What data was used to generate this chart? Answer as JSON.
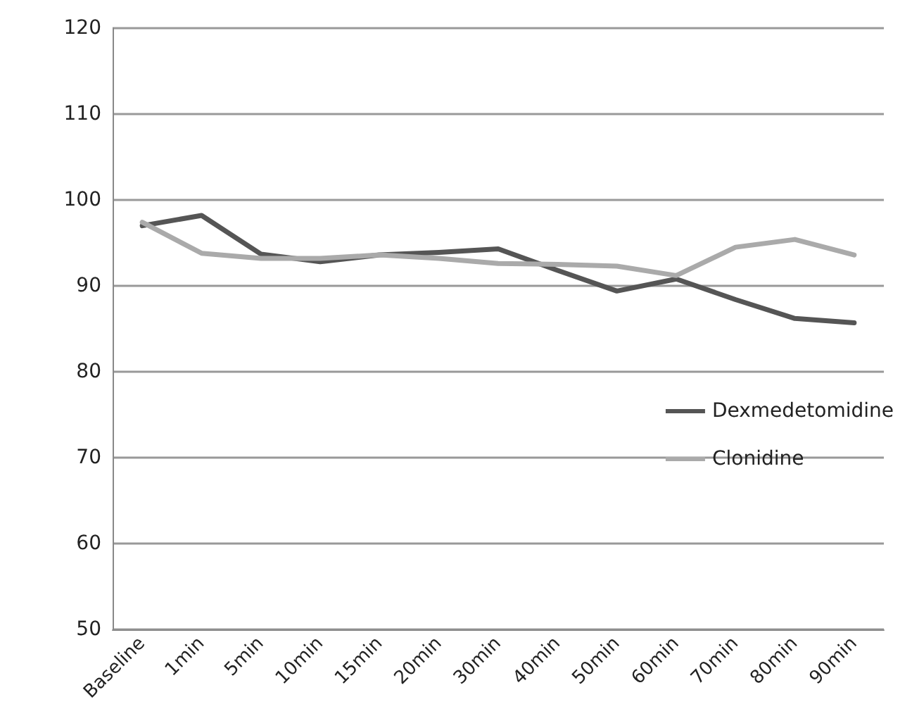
{
  "chart_data": {
    "type": "line",
    "categories": [
      "Baseline",
      "1min",
      "5min",
      "10min",
      "15min",
      "20min",
      "30min",
      "40min",
      "50min",
      "60min",
      "70min",
      "80min",
      "90min"
    ],
    "series": [
      {
        "name": "Dexmedetomidine",
        "color": "#555555",
        "values": [
          97,
          98.2,
          93.7,
          92.8,
          93.6,
          93.9,
          94.3,
          91.8,
          89.4,
          90.8,
          88.4,
          86.2,
          85.7
        ]
      },
      {
        "name": "Clonidine",
        "color": "#aaaaaa",
        "values": [
          97.4,
          93.8,
          93.2,
          93.2,
          93.6,
          93.2,
          92.6,
          92.5,
          92.3,
          91.2,
          94.5,
          95.4,
          93.6
        ]
      }
    ],
    "ylim": [
      50,
      120
    ],
    "yticks": [
      50,
      60,
      70,
      80,
      90,
      100,
      110,
      120
    ],
    "grid": "y",
    "legend": "right",
    "marker": "none",
    "line_style": "solid"
  }
}
